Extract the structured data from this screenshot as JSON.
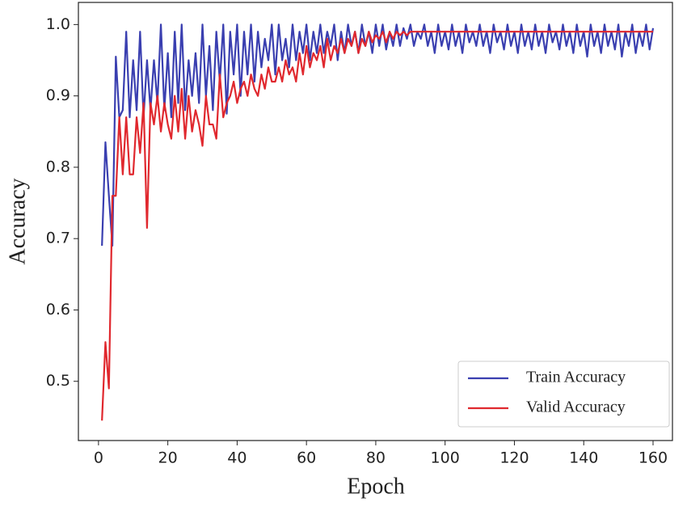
{
  "chart_data": {
    "type": "line",
    "x_label": "Epoch",
    "y_label": "Accuracy",
    "x": [
      1,
      2,
      3,
      4,
      5,
      6,
      7,
      8,
      9,
      10,
      11,
      12,
      13,
      14,
      15,
      16,
      17,
      18,
      19,
      20,
      21,
      22,
      23,
      24,
      25,
      26,
      27,
      28,
      29,
      30,
      31,
      32,
      33,
      34,
      35,
      36,
      37,
      38,
      39,
      40,
      41,
      42,
      43,
      44,
      45,
      46,
      47,
      48,
      49,
      50,
      51,
      52,
      53,
      54,
      55,
      56,
      57,
      58,
      59,
      60,
      61,
      62,
      63,
      64,
      65,
      66,
      67,
      68,
      69,
      70,
      71,
      72,
      73,
      74,
      75,
      76,
      77,
      78,
      79,
      80,
      81,
      82,
      83,
      84,
      85,
      86,
      87,
      88,
      89,
      90,
      91,
      92,
      93,
      94,
      95,
      96,
      97,
      98,
      99,
      100,
      101,
      102,
      103,
      104,
      105,
      106,
      107,
      108,
      109,
      110,
      111,
      112,
      113,
      114,
      115,
      116,
      117,
      118,
      119,
      120,
      121,
      122,
      123,
      124,
      125,
      126,
      127,
      128,
      129,
      130,
      131,
      132,
      133,
      134,
      135,
      136,
      137,
      138,
      139,
      140,
      141,
      142,
      143,
      144,
      145,
      146,
      147,
      148,
      149,
      150,
      151,
      152,
      153,
      154,
      155,
      156,
      157,
      158,
      159,
      160
    ],
    "series": [
      {
        "name": "Train Accuracy",
        "color": "#3a3fb0",
        "values": [
          0.69,
          0.835,
          0.76,
          0.69,
          0.955,
          0.87,
          0.88,
          0.99,
          0.87,
          0.95,
          0.88,
          0.99,
          0.87,
          0.95,
          0.88,
          0.95,
          0.89,
          1.0,
          0.88,
          0.96,
          0.87,
          0.99,
          0.89,
          1.0,
          0.88,
          0.95,
          0.9,
          0.96,
          0.89,
          1.0,
          0.9,
          0.97,
          0.88,
          0.99,
          0.92,
          1.0,
          0.875,
          0.99,
          0.93,
          1.0,
          0.9,
          0.99,
          0.93,
          1.0,
          0.92,
          0.99,
          0.94,
          0.98,
          0.95,
          1.0,
          0.93,
          1.0,
          0.95,
          0.98,
          0.94,
          1.0,
          0.95,
          0.99,
          0.96,
          1.0,
          0.95,
          0.99,
          0.96,
          1.0,
          0.96,
          0.99,
          0.97,
          1.0,
          0.95,
          0.99,
          0.96,
          1.0,
          0.97,
          0.99,
          0.96,
          1.0,
          0.97,
          0.99,
          0.96,
          1.0,
          0.97,
          1.0,
          0.965,
          0.99,
          0.97,
          1.0,
          0.97,
          0.995,
          0.98,
          1.0,
          0.97,
          0.99,
          0.98,
          1.0,
          0.97,
          0.99,
          0.96,
          1.0,
          0.97,
          0.99,
          0.965,
          1.0,
          0.97,
          0.99,
          0.96,
          1.0,
          0.975,
          0.99,
          0.97,
          1.0,
          0.97,
          0.99,
          0.96,
          1.0,
          0.975,
          0.99,
          0.965,
          1.0,
          0.97,
          0.99,
          0.96,
          1.0,
          0.97,
          0.99,
          0.965,
          1.0,
          0.97,
          0.99,
          0.96,
          1.0,
          0.975,
          0.99,
          0.965,
          1.0,
          0.97,
          0.99,
          0.96,
          1.0,
          0.97,
          0.99,
          0.955,
          1.0,
          0.97,
          0.99,
          0.96,
          1.0,
          0.97,
          0.99,
          0.965,
          1.0,
          0.955,
          0.99,
          0.97,
          1.0,
          0.96,
          0.99,
          0.97,
          1.0,
          0.965,
          0.995
        ]
      },
      {
        "name": "Valid Accuracy",
        "color": "#e0282e",
        "values": [
          0.445,
          0.555,
          0.49,
          0.76,
          0.76,
          0.87,
          0.79,
          0.87,
          0.79,
          0.79,
          0.87,
          0.82,
          0.89,
          0.715,
          0.89,
          0.86,
          0.9,
          0.85,
          0.89,
          0.86,
          0.84,
          0.9,
          0.85,
          0.91,
          0.84,
          0.9,
          0.85,
          0.88,
          0.86,
          0.83,
          0.9,
          0.86,
          0.86,
          0.84,
          0.93,
          0.87,
          0.89,
          0.9,
          0.92,
          0.89,
          0.91,
          0.92,
          0.9,
          0.93,
          0.91,
          0.9,
          0.93,
          0.91,
          0.94,
          0.92,
          0.92,
          0.94,
          0.92,
          0.95,
          0.93,
          0.94,
          0.92,
          0.96,
          0.93,
          0.97,
          0.94,
          0.96,
          0.95,
          0.97,
          0.94,
          0.98,
          0.95,
          0.97,
          0.96,
          0.98,
          0.96,
          0.98,
          0.97,
          0.99,
          0.96,
          0.98,
          0.97,
          0.99,
          0.975,
          0.985,
          0.98,
          0.99,
          0.975,
          0.99,
          0.98,
          0.99,
          0.985,
          0.99,
          0.985,
          0.99,
          0.99,
          0.99,
          0.99,
          0.99,
          0.99,
          0.99,
          0.99,
          0.99,
          0.99,
          0.99,
          0.99,
          0.99,
          0.99,
          0.99,
          0.99,
          0.99,
          0.99,
          0.99,
          0.99,
          0.99,
          0.99,
          0.99,
          0.99,
          0.99,
          0.99,
          0.99,
          0.99,
          0.99,
          0.99,
          0.99,
          0.99,
          0.99,
          0.99,
          0.99,
          0.99,
          0.99,
          0.99,
          0.99,
          0.99,
          0.99,
          0.99,
          0.99,
          0.99,
          0.99,
          0.99,
          0.99,
          0.99,
          0.99,
          0.99,
          0.99,
          0.99,
          0.99,
          0.99,
          0.99,
          0.99,
          0.99,
          0.99,
          0.99,
          0.99,
          0.99,
          0.99,
          0.99,
          0.99,
          0.99,
          0.99,
          0.99,
          0.99,
          0.99,
          0.99,
          0.99
        ]
      }
    ],
    "xlim": [
      -5.8,
      165.6
    ],
    "ylim": [
      0.417,
      1.031
    ],
    "xticks": [
      0,
      20,
      40,
      60,
      80,
      100,
      120,
      140,
      160
    ],
    "yticks": [
      0.5,
      0.6,
      0.7,
      0.8,
      0.9,
      {
        "value": 1,
        "label": "1.0"
      }
    ],
    "legend": "lower right"
  }
}
